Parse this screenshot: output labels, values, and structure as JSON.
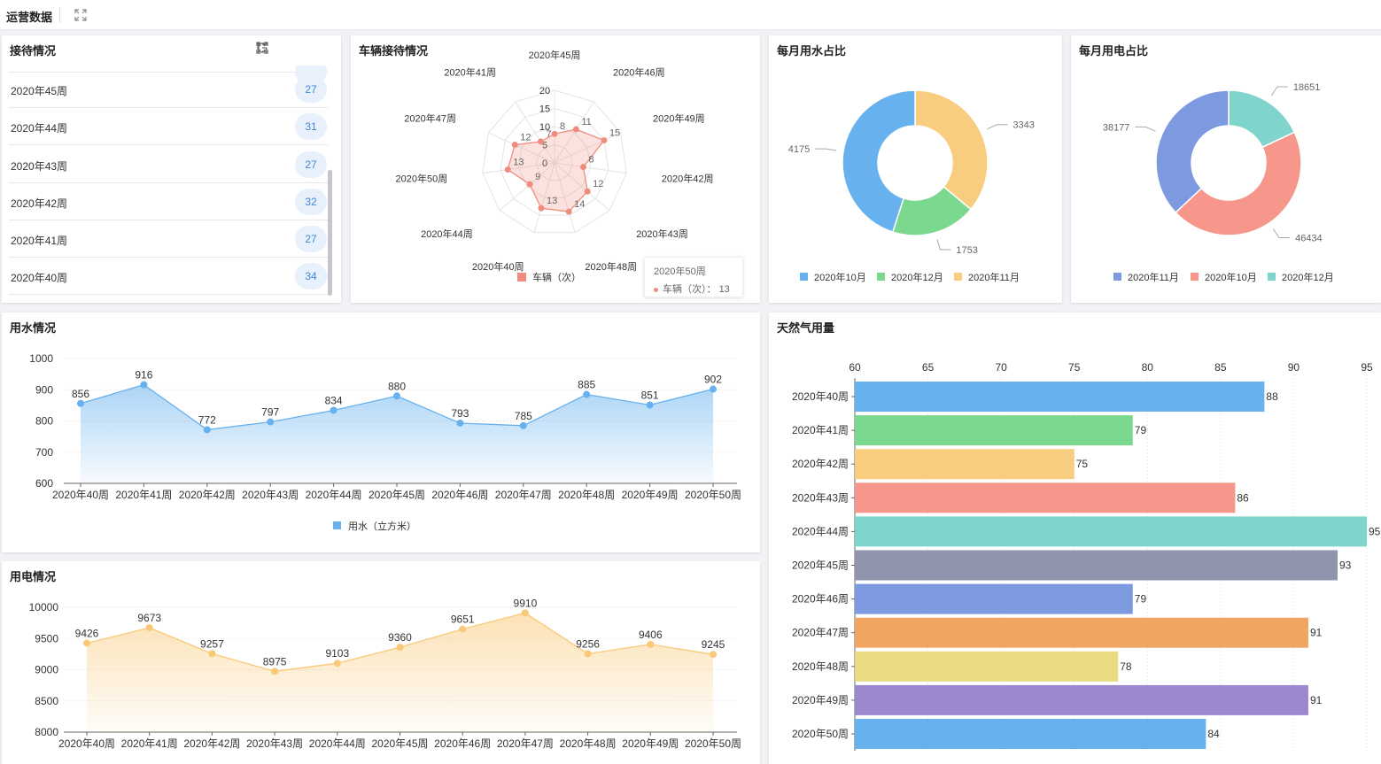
{
  "page": {
    "title": "运营数据"
  },
  "reception": {
    "title": "接待情况",
    "rows": [
      {
        "label": "2020年45周",
        "value": "27"
      },
      {
        "label": "2020年44周",
        "value": "31"
      },
      {
        "label": "2020年43周",
        "value": "27"
      },
      {
        "label": "2020年42周",
        "value": "32"
      },
      {
        "label": "2020年41周",
        "value": "27"
      },
      {
        "label": "2020年40周",
        "value": "34"
      }
    ]
  },
  "vehicle": {
    "title": "车辆接待情况",
    "tooltip": {
      "title": "2020年50周",
      "series": "车辆（次）",
      "value": "13"
    }
  },
  "colors": {
    "blue": "#66b1ee",
    "green": "#7ad98e",
    "yellow": "#f9cd80",
    "red": "#f7968a",
    "teal": "#7fd5cb",
    "slate": "#9094ac",
    "periwinkle": "#7d9ae1",
    "orange": "#f0a562",
    "khaki": "#eadb82",
    "purple": "#9c88cf",
    "radar": "#f08c7e",
    "elec": "#f9c978"
  },
  "chart_data": [
    {
      "id": "vehicle-radar",
      "type": "radar",
      "legend": [
        "车辆（次）"
      ],
      "legend_position": "bottom",
      "max": 20,
      "ring_labels": [
        "0",
        "5",
        "10",
        "15",
        "20"
      ],
      "indicators": [
        "2020年45周",
        "2020年46周",
        "2020年49周",
        "2020年42周",
        "2020年43周",
        "2020年48周",
        "2020年40周",
        "2020年44周",
        "2020年50周",
        "2020年47周",
        "2020年41周"
      ],
      "values": [
        8,
        11,
        15,
        8,
        12,
        14,
        13,
        9,
        13,
        12,
        7
      ]
    },
    {
      "id": "water-month",
      "title": "每月用水占比",
      "type": "pie",
      "donut": true,
      "legend_position": "bottom",
      "slices": [
        {
          "label": "2020年10月",
          "value": 4175,
          "color": "#66b1ee"
        },
        {
          "label": "2020年12月",
          "value": 1753,
          "color": "#7ad98e"
        },
        {
          "label": "2020年11月",
          "value": 3343,
          "color": "#f9cd80"
        }
      ]
    },
    {
      "id": "elec-month",
      "title": "每月用电占比",
      "type": "pie",
      "donut": true,
      "legend_position": "bottom",
      "slices": [
        {
          "label": "2020年11月",
          "value": 38177,
          "color": "#7d9ae1"
        },
        {
          "label": "2020年10月",
          "value": 46434,
          "color": "#f7968a"
        },
        {
          "label": "2020年12月",
          "value": 18651,
          "color": "#7fd5cb"
        }
      ]
    },
    {
      "id": "water-usage",
      "title": "用水情况",
      "type": "area",
      "categories": [
        "2020年40周",
        "2020年41周",
        "2020年42周",
        "2020年43周",
        "2020年44周",
        "2020年45周",
        "2020年46周",
        "2020年47周",
        "2020年48周",
        "2020年49周",
        "2020年50周"
      ],
      "series": [
        {
          "name": "用水（立方米）",
          "values": [
            856,
            916,
            772,
            797,
            834,
            880,
            793,
            785,
            885,
            851,
            902
          ]
        }
      ],
      "ylim": [
        600,
        1000
      ],
      "yticks": [
        600,
        700,
        800,
        900,
        1000
      ],
      "grid": true,
      "legend_position": "bottom",
      "color": "#66b1ee"
    },
    {
      "id": "elec-usage",
      "title": "用电情况",
      "type": "area",
      "categories": [
        "2020年40周",
        "2020年41周",
        "2020年42周",
        "2020年43周",
        "2020年44周",
        "2020年45周",
        "2020年46周",
        "2020年47周",
        "2020年48周",
        "2020年49周",
        "2020年50周"
      ],
      "series": [
        {
          "values": [
            9426,
            9673,
            9257,
            8975,
            9103,
            9360,
            9651,
            9910,
            9256,
            9406,
            9245
          ]
        }
      ],
      "ylim": [
        8000,
        10000
      ],
      "yticks": [
        8000,
        8500,
        9000,
        9500,
        10000
      ],
      "grid": true,
      "color": "#f9c978"
    },
    {
      "id": "gas-usage",
      "title": "天然气用量",
      "type": "bar",
      "orientation": "horizontal",
      "categories": [
        "2020年40周",
        "2020年41周",
        "2020年42周",
        "2020年43周",
        "2020年44周",
        "2020年45周",
        "2020年46周",
        "2020年47周",
        "2020年48周",
        "2020年49周",
        "2020年50周"
      ],
      "values": [
        88,
        79,
        75,
        86,
        95,
        93,
        79,
        91,
        78,
        91,
        84
      ],
      "colors": [
        "#66b1ee",
        "#7ad98e",
        "#f9cd80",
        "#f7968a",
        "#7fd5cb",
        "#9094ac",
        "#7d9ae1",
        "#f0a562",
        "#eadb82",
        "#9c88cf",
        "#66b1ee"
      ],
      "xlim": [
        60,
        95
      ],
      "xticks": [
        60,
        65,
        70,
        75,
        80,
        85,
        90,
        95
      ],
      "xaxis_position": "top",
      "grid": true
    }
  ]
}
